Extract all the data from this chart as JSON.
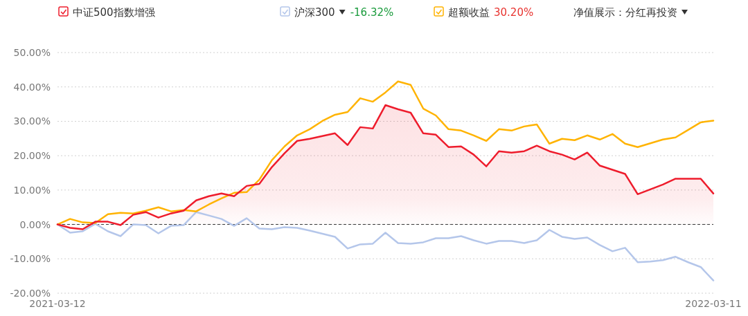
{
  "chart_data": {
    "type": "line",
    "categories": [
      "2021-03-12",
      null,
      null,
      null,
      null,
      null,
      null,
      null,
      null,
      null,
      null,
      null,
      null,
      null,
      null,
      null,
      null,
      null,
      null,
      null,
      null,
      null,
      null,
      null,
      null,
      null,
      null,
      null,
      null,
      null,
      null,
      null,
      null,
      null,
      null,
      null,
      null,
      null,
      null,
      null,
      null,
      null,
      null,
      null,
      null,
      null,
      null,
      null,
      null,
      null,
      null,
      null,
      "2022-03-11"
    ],
    "series": [
      {
        "name": "中证500指数增强",
        "type": "area",
        "color": "#ee1c2c",
        "values": [
          0,
          -1.0,
          -1.4,
          0.8,
          0.8,
          -0.2,
          2.8,
          3.6,
          2.0,
          3.2,
          4.0,
          7.0,
          8.2,
          9.0,
          8.2,
          11.2,
          11.8,
          16.7,
          20.7,
          24.3,
          24.9,
          25.7,
          26.5,
          23.1,
          28.3,
          27.9,
          34.7,
          33.5,
          32.5,
          26.5,
          26.1,
          22.5,
          22.7,
          20.3,
          16.9,
          21.3,
          20.9,
          21.3,
          22.9,
          21.3,
          20.3,
          18.9,
          20.9,
          17.1,
          15.9,
          14.7,
          8.8,
          10.2,
          11.6,
          13.3,
          13.3,
          13.3,
          9.0
        ]
      },
      {
        "name": "沪深300",
        "color": "#b4c6ea",
        "values": [
          0,
          -2.4,
          -2.0,
          0.2,
          -2.0,
          -3.4,
          0,
          -0.2,
          -2.6,
          -0.4,
          -0.2,
          3.6,
          2.6,
          1.6,
          -0.4,
          1.8,
          -1.2,
          -1.4,
          -0.8,
          -1.0,
          -1.8,
          -2.7,
          -3.6,
          -7.0,
          -5.8,
          -5.6,
          -2.4,
          -5.4,
          -5.6,
          -5.2,
          -4.0,
          -4.0,
          -3.4,
          -4.6,
          -5.6,
          -4.8,
          -4.8,
          -5.4,
          -4.6,
          -1.6,
          -3.6,
          -4.2,
          -3.8,
          -6.0,
          -7.8,
          -6.8,
          -11.0,
          -10.8,
          -10.4,
          -9.4,
          -11.0,
          -12.4,
          -16.32
        ]
      },
      {
        "name": "超额收益",
        "color": "#ffb300",
        "values": [
          0,
          1.6,
          0.6,
          0.4,
          3.0,
          3.4,
          3.2,
          4.0,
          5.0,
          3.8,
          4.2,
          3.8,
          5.8,
          7.6,
          9.2,
          9.4,
          13.0,
          18.7,
          22.7,
          25.9,
          27.7,
          30.1,
          31.9,
          32.7,
          36.7,
          35.7,
          38.4,
          41.6,
          40.6,
          33.7,
          31.7,
          27.7,
          27.3,
          25.9,
          24.3,
          27.7,
          27.3,
          28.5,
          29.1,
          23.5,
          24.9,
          24.5,
          25.9,
          24.7,
          26.3,
          23.5,
          22.5,
          23.6,
          24.7,
          25.3,
          27.5,
          29.7,
          30.2
        ]
      }
    ],
    "ylim": [
      -20,
      50
    ],
    "yticks": [
      {
        "value": -20,
        "label": "-20.00%"
      },
      {
        "value": -10,
        "label": "-10.00%"
      },
      {
        "value": 0,
        "label": "0.00%"
      },
      {
        "value": 10,
        "label": "10.00%"
      },
      {
        "value": 20,
        "label": "20.00%"
      },
      {
        "value": 30,
        "label": "30.00%"
      },
      {
        "value": 40,
        "label": "40.00%"
      },
      {
        "value": 50,
        "label": "50.00%"
      }
    ],
    "grid": "y",
    "legend": "top",
    "ref_lines": [
      {
        "axis": "y",
        "value": 0,
        "color": "#333333",
        "line_style": "dashed"
      }
    ],
    "annotations": [
      "-16.32%",
      "30.20%",
      "净值展示：分红再投资"
    ]
  }
}
